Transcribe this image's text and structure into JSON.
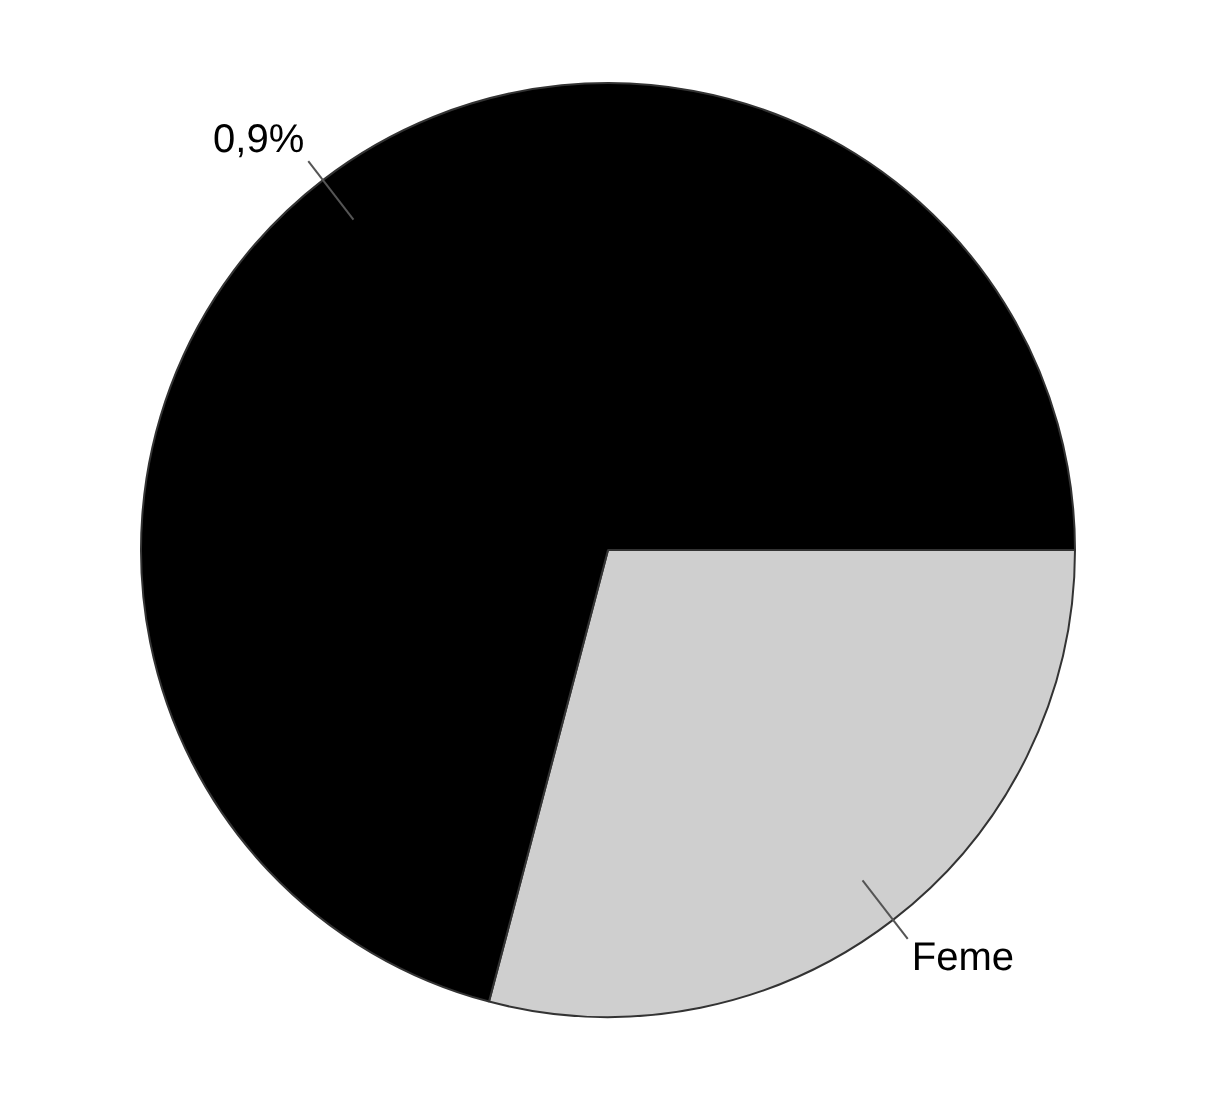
{
  "chart_data": {
    "type": "pie",
    "categories": [
      "Feme",
      null
    ],
    "values": [
      29.1,
      70.9
    ],
    "colors": [
      "#cfcfcf",
      "#000000"
    ],
    "annotations": [
      "0,9%"
    ],
    "legend": false
  }
}
